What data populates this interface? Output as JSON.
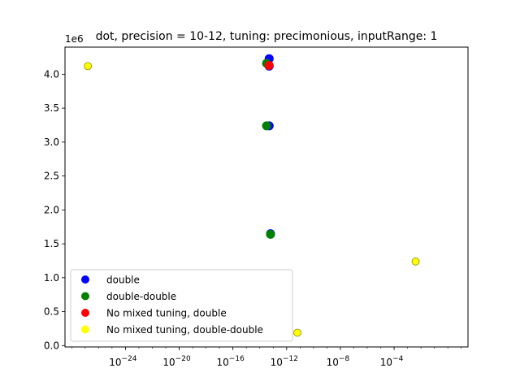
{
  "chart_data": {
    "type": "scatter",
    "title": "dot, precision = 10-12, tuning: precimonious, inputRange: 1",
    "xlabel": "",
    "ylabel": "",
    "xscale": "log",
    "xlim_exp": [
      -28.5,
      1.5
    ],
    "ylim": [
      -0.02,
      4.4
    ],
    "y_multiplier_label": "1e6",
    "x_ticks": [
      {
        "exp": -24,
        "label": "10",
        "sup": "−24"
      },
      {
        "exp": -20,
        "label": "10",
        "sup": "−20"
      },
      {
        "exp": -16,
        "label": "10",
        "sup": "−16"
      },
      {
        "exp": -12,
        "label": "10",
        "sup": "−12"
      },
      {
        "exp": -8,
        "label": "10",
        "sup": "−8"
      },
      {
        "exp": -4,
        "label": "10",
        "sup": "−4"
      }
    ],
    "y_ticks": [
      "0.0",
      "0.5",
      "1.0",
      "1.5",
      "2.0",
      "2.5",
      "3.0",
      "3.5",
      "4.0"
    ],
    "grid": false,
    "legend_position": "lower-left",
    "series": [
      {
        "name": "double",
        "color": "#0000ff",
        "points": [
          {
            "x": "5e-14",
            "y": 4.23
          },
          {
            "x": "5e-14",
            "y": 4.12
          },
          {
            "x": "5e-14",
            "y": 3.24
          },
          {
            "x": "6.3e-14",
            "y": 1.65
          }
        ]
      },
      {
        "name": "double-double",
        "color": "#008000",
        "points": [
          {
            "x": "3.2e-14",
            "y": 4.16
          },
          {
            "x": "3.2e-14",
            "y": 3.24
          },
          {
            "x": "6.3e-14",
            "y": 1.64
          }
        ]
      },
      {
        "name": "No mixed tuning, double",
        "color": "#ff0000",
        "points": [
          {
            "x": "5e-14",
            "y": 4.13
          }
        ]
      },
      {
        "name": "No mixed tuning, double-double",
        "color": "#ffff00",
        "points": [
          {
            "x": "1.6e-27",
            "y": 4.12
          },
          {
            "x": "6.3e-12",
            "y": 0.19
          },
          {
            "x": "4e-3",
            "y": 1.24
          }
        ]
      }
    ]
  }
}
